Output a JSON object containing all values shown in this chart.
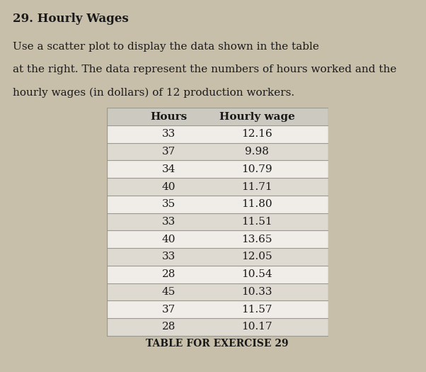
{
  "hours": [
    33,
    37,
    34,
    40,
    35,
    33,
    40,
    33,
    28,
    45,
    37,
    28
  ],
  "wages": [
    12.16,
    9.98,
    10.79,
    11.71,
    11.8,
    11.51,
    13.65,
    12.05,
    10.54,
    10.33,
    11.57,
    10.17
  ],
  "col1_header": "Hours",
  "col2_header": "Hourly wage",
  "footer_text": "TABLE FOR EXERCISE 29",
  "bg_color": "#c8bfaa",
  "table_bg": "#dedad2",
  "table_white": "#f0ede8",
  "text_color": "#1a1a1a",
  "line_color": "#999990"
}
